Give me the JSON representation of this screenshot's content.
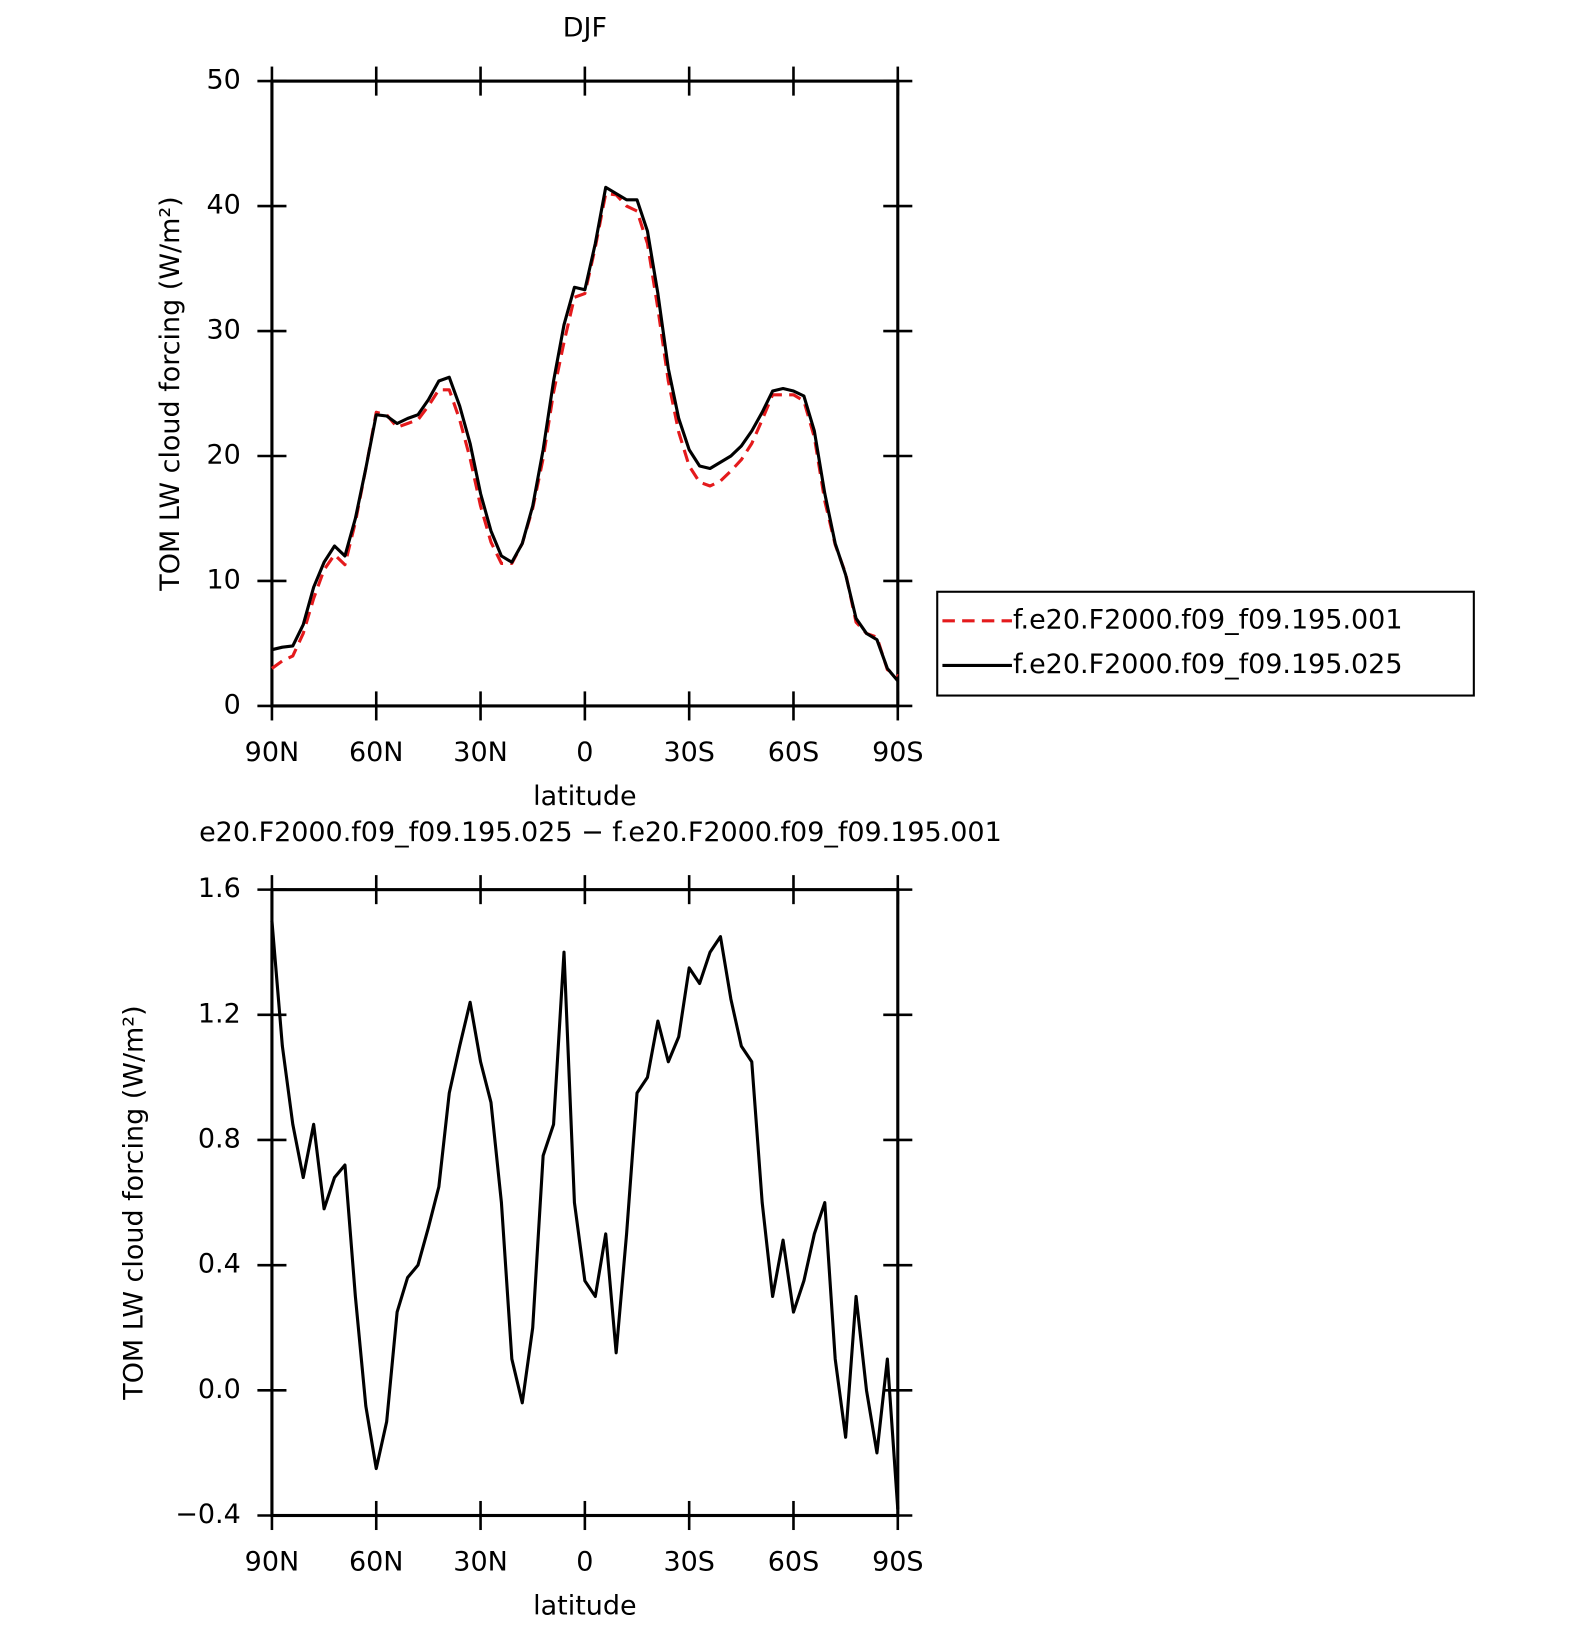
{
  "chart_data": [
    {
      "type": "line",
      "title": "DJF",
      "ylabel": "TOM LW cloud forcing (W/m²)",
      "xlabel": "latitude",
      "x": [
        90,
        87,
        84,
        81,
        78,
        75,
        72,
        69,
        66,
        63,
        60,
        57,
        54,
        51,
        48,
        45,
        42,
        39,
        36,
        33,
        30,
        27,
        24,
        21,
        18,
        15,
        12,
        9,
        6,
        3,
        0,
        -3,
        -6,
        -9,
        -12,
        -15,
        -18,
        -21,
        -24,
        -27,
        -30,
        -33,
        -36,
        -39,
        -42,
        -45,
        -48,
        -51,
        -54,
        -57,
        -60,
        -63,
        -66,
        -69,
        -72,
        -75,
        -78,
        -81,
        -84,
        -87,
        -90
      ],
      "series": [
        {
          "name": "f.e20.F2000.f09_f09.195.001",
          "color": "#e41a1c",
          "dash": true,
          "values": [
            3.0,
            3.6,
            4.0,
            5.8,
            8.6,
            10.9,
            12.1,
            11.3,
            14.7,
            19.0,
            23.5,
            23.3,
            22.3,
            22.6,
            22.9,
            24.0,
            25.3,
            25.3,
            22.9,
            19.8,
            16.0,
            13.1,
            11.4,
            11.4,
            13.0,
            15.8,
            19.8,
            25.1,
            29.1,
            32.7,
            33.0,
            36.7,
            41.0,
            40.9,
            40.0,
            39.6,
            37.0,
            31.8,
            26.0,
            21.9,
            19.2,
            17.9,
            17.6,
            18.0,
            18.8,
            19.7,
            21.0,
            22.9,
            24.9,
            24.9,
            24.9,
            24.4,
            21.5,
            16.4,
            12.9,
            10.6,
            6.7,
            5.8,
            5.5,
            2.9,
            2.4
          ]
        },
        {
          "name": "f.e20.F2000.f09_f09.195.025",
          "color": "#000000",
          "dash": false,
          "values": [
            4.5,
            4.7,
            4.8,
            6.5,
            9.5,
            11.5,
            12.8,
            12.0,
            15.0,
            19.0,
            23.3,
            23.2,
            22.6,
            23.0,
            23.3,
            24.5,
            26.0,
            26.3,
            24.0,
            21.0,
            17.0,
            14.0,
            12.0,
            11.5,
            13.0,
            16.0,
            20.5,
            26.0,
            30.5,
            33.5,
            33.3,
            37.0,
            41.5,
            41.0,
            40.5,
            40.5,
            38.0,
            33.0,
            27.0,
            23.0,
            20.5,
            19.2,
            19.0,
            19.5,
            20.0,
            20.8,
            22.0,
            23.5,
            25.2,
            25.4,
            25.2,
            24.8,
            22.0,
            17.0,
            13.0,
            10.5,
            7.0,
            5.8,
            5.3,
            3.0,
            2.0
          ]
        }
      ],
      "xlim": [
        90,
        -90
      ],
      "xticks": [
        {
          "value": 90,
          "label": "90N"
        },
        {
          "value": 60,
          "label": "60N"
        },
        {
          "value": 30,
          "label": "30N"
        },
        0,
        {
          "value": -30,
          "label": "30S"
        },
        {
          "value": -60,
          "label": "60S"
        },
        {
          "value": -90,
          "label": "90S"
        }
      ],
      "ylim": [
        0,
        50
      ],
      "yticks": [
        0,
        10,
        20,
        30,
        40,
        50
      ],
      "legend": "right"
    },
    {
      "type": "line",
      "title": "e20.F2000.f09_f09.195.025 − f.e20.F2000.f09_f09.195.001",
      "ylabel": "TOM LW cloud forcing (W/m²)",
      "xlabel": "latitude",
      "x": [
        90,
        87,
        84,
        81,
        78,
        75,
        72,
        69,
        66,
        63,
        60,
        57,
        54,
        51,
        48,
        45,
        42,
        39,
        36,
        33,
        30,
        27,
        24,
        21,
        18,
        15,
        12,
        9,
        6,
        3,
        0,
        -3,
        -6,
        -9,
        -12,
        -15,
        -18,
        -21,
        -24,
        -27,
        -30,
        -33,
        -36,
        -39,
        -42,
        -45,
        -48,
        -51,
        -54,
        -57,
        -60,
        -63,
        -66,
        -69,
        -72,
        -75,
        -78,
        -81,
        -84,
        -87,
        -90
      ],
      "series": [
        {
          "color": "#000000",
          "dash": false,
          "values": [
            1.5,
            1.1,
            0.85,
            0.68,
            0.85,
            0.58,
            0.68,
            0.72,
            0.3,
            -0.05,
            -0.25,
            -0.1,
            0.25,
            0.36,
            0.4,
            0.52,
            0.65,
            0.95,
            1.1,
            1.24,
            1.05,
            0.92,
            0.6,
            0.1,
            -0.04,
            0.2,
            0.75,
            0.85,
            1.4,
            0.6,
            0.35,
            0.3,
            0.5,
            0.12,
            0.5,
            0.95,
            1.0,
            1.18,
            1.05,
            1.13,
            1.35,
            1.3,
            1.4,
            1.45,
            1.25,
            1.1,
            1.05,
            0.6,
            0.3,
            0.48,
            0.25,
            0.35,
            0.5,
            0.6,
            0.1,
            -0.15,
            0.3,
            0.0,
            -0.2,
            0.1,
            -0.38
          ]
        }
      ],
      "xlim": [
        90,
        -90
      ],
      "xticks": [
        {
          "value": 90,
          "label": "90N"
        },
        {
          "value": 60,
          "label": "60N"
        },
        {
          "value": 30,
          "label": "30N"
        },
        0,
        {
          "value": -30,
          "label": "30S"
        },
        {
          "value": -60,
          "label": "60S"
        },
        {
          "value": -90,
          "label": "90S"
        }
      ],
      "ylim": [
        -0.4,
        1.6
      ],
      "yticks": [
        {
          "value": -0.4,
          "label": "−0.4"
        },
        {
          "value": 0,
          "label": "0.0"
        },
        0.4,
        0.8,
        1.2,
        1.6
      ]
    }
  ]
}
